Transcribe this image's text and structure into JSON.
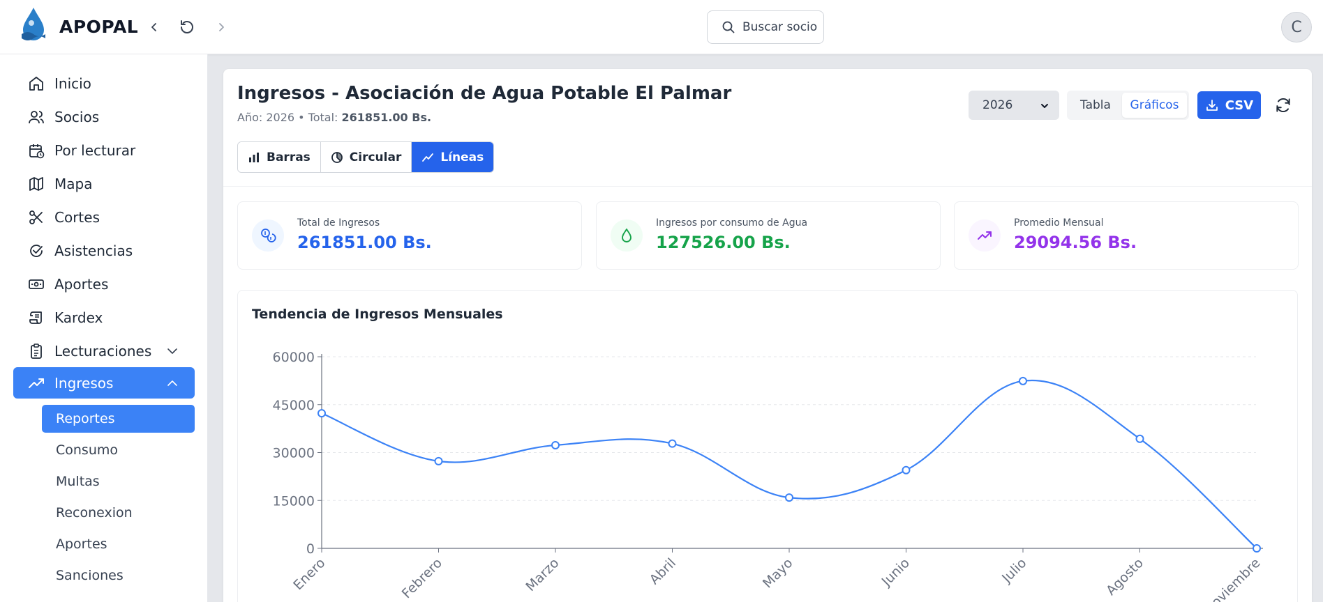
{
  "app": {
    "brand": "APOPAL"
  },
  "header": {
    "search_placeholder": "Buscar socio",
    "avatar_initial": "C"
  },
  "sidebar": {
    "items": [
      {
        "label": "Inicio",
        "icon": "home-icon"
      },
      {
        "label": "Socios",
        "icon": "users-icon"
      },
      {
        "label": "Por lecturar",
        "icon": "calendar-clock-icon"
      },
      {
        "label": "Mapa",
        "icon": "map-icon"
      },
      {
        "label": "Cortes",
        "icon": "scissors-icon"
      },
      {
        "label": "Asistencias",
        "icon": "check-circle-icon"
      },
      {
        "label": "Aportes",
        "icon": "banknote-icon"
      },
      {
        "label": "Kardex",
        "icon": "scroll-icon"
      },
      {
        "label": "Lecturaciones",
        "icon": "clipboard-icon"
      },
      {
        "label": "Ingresos",
        "icon": "trending-up-icon"
      }
    ],
    "subitems": [
      "Reportes",
      "Consumo",
      "Multas",
      "Reconexion",
      "Aportes",
      "Sanciones"
    ]
  },
  "page": {
    "title": "Ingresos - Asociación de Agua Potable El Palmar",
    "subtitle_prefix": "Año: 2026 • Total: ",
    "subtitle_total": "261851.00 Bs.",
    "year": "2026",
    "view_toggle": {
      "table": "Tabla",
      "charts": "Gráficos",
      "selected": "Gráficos"
    },
    "csv_label": "CSV",
    "chart_tabs": [
      {
        "label": "Barras",
        "icon": "bar-chart-icon"
      },
      {
        "label": "Circular",
        "icon": "pie-chart-icon"
      },
      {
        "label": "Líneas",
        "icon": "line-chart-icon"
      }
    ],
    "selected_chart_tab": "Líneas"
  },
  "stats": [
    {
      "label": "Total de Ingresos",
      "value": "261851.00 Bs.",
      "color": "#2563eb",
      "icon": "coins-icon"
    },
    {
      "label": "Ingresos por consumo de Agua",
      "value": "127526.00 Bs.",
      "color": "#16a34a",
      "icon": "droplet-icon"
    },
    {
      "label": "Promedio Mensual",
      "value": "29094.56 Bs.",
      "color": "#9333ea",
      "icon": "trending-up-icon"
    }
  ],
  "chart_title": "Tendencia de Ingresos Mensuales",
  "colors": {
    "accent": "#2563eb",
    "sidebar_active": "#3b82f6",
    "line": "#3b82f6"
  },
  "chart_data": {
    "type": "line",
    "title": "Tendencia de Ingresos Mensuales",
    "categories": [
      "Enero",
      "Febrero",
      "Marzo",
      "Abril",
      "Mayo",
      "Junio",
      "Julio",
      "Agosto",
      "Noviembre"
    ],
    "values": [
      42300,
      27300,
      32300,
      32800,
      15900,
      24500,
      52400,
      34300,
      0
    ],
    "ylim": [
      0,
      60000
    ],
    "yticks": [
      0,
      15000,
      30000,
      45000,
      60000
    ],
    "grid": "horizontal dashed",
    "xlabel": "",
    "ylabel": ""
  }
}
